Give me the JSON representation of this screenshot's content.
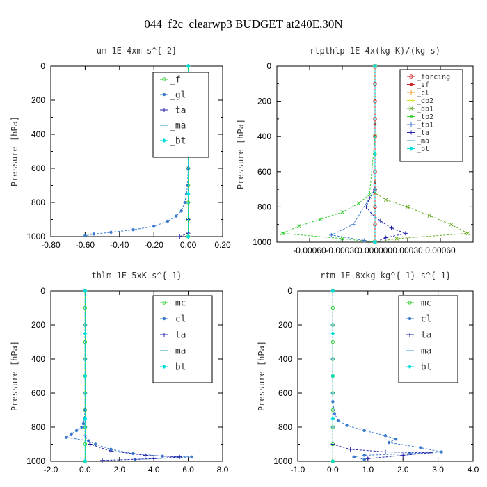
{
  "figure_title": "044_f2c_clearwp3  BUDGET at240E,30N",
  "chart_data": [
    {
      "type": "line",
      "title": "um  1E-4xm s^{-2}",
      "ylabel": "Pressure [hPa]",
      "xlim": [
        -0.8,
        0.2
      ],
      "ylim": [
        1000,
        0
      ],
      "xticks": [
        -0.8,
        -0.6,
        -0.4,
        -0.2,
        0.0,
        0.2
      ],
      "xtick_labels": [
        "-0.80",
        "-0.60",
        "-0.40",
        "-0.20",
        "0.00",
        "0.20"
      ],
      "yticks": [
        0,
        200,
        400,
        600,
        800,
        1000
      ],
      "ytick_labels": [
        "0",
        "200",
        "400",
        "600",
        "800",
        "1000"
      ],
      "legend_position": "top-right",
      "legend_font": 13,
      "series": [
        {
          "name": "_f",
          "color": "#33cc33",
          "marker": "o",
          "x": [
            0,
            0,
            0,
            0,
            0,
            0,
            0,
            0,
            0,
            0,
            0
          ],
          "y": [
            0,
            100,
            200,
            300,
            400,
            500,
            600,
            700,
            800,
            900,
            1000
          ]
        },
        {
          "name": "_gl",
          "color": "#3a7acc",
          "marker": "*",
          "x": [
            0,
            0,
            0,
            0,
            -0.005,
            -0.01,
            -0.02,
            -0.04,
            -0.07,
            -0.12,
            -0.2,
            -0.32,
            -0.45,
            -0.55,
            -0.6
          ],
          "y": [
            0,
            200,
            400,
            600,
            700,
            750,
            800,
            850,
            880,
            910,
            940,
            960,
            975,
            985,
            995
          ]
        },
        {
          "name": "_ta",
          "color": "#2222aa",
          "marker": "+",
          "x": [
            0,
            0,
            0,
            0,
            0,
            -0.05
          ],
          "y": [
            0,
            300,
            600,
            900,
            980,
            1000
          ]
        },
        {
          "name": "_ma",
          "color": "#3399cc",
          "marker": "-",
          "x": [
            0,
            0,
            0,
            0,
            0,
            0
          ],
          "y": [
            0,
            200,
            400,
            600,
            800,
            1000
          ]
        },
        {
          "name": "_bt",
          "color": "#00dddd",
          "marker": "d",
          "x": [
            0,
            0,
            0,
            0,
            0
          ],
          "y": [
            0,
            250,
            500,
            750,
            1000
          ]
        }
      ]
    },
    {
      "type": "line",
      "title": "rtpthlp  1E-4x(kg K)/(kg s)",
      "ylabel": "Pressure [hPa]",
      "xlim": [
        -0.0009,
        0.0009
      ],
      "ylim": [
        1000,
        0
      ],
      "xticks": [
        -0.0006,
        -0.0003,
        0.0,
        0.0003,
        0.0006
      ],
      "xtick_labels": [
        "-0.00060",
        "-0.00030",
        "0.000000",
        "0.00030",
        "0.00060"
      ],
      "yticks": [
        0,
        200,
        400,
        600,
        800,
        1000
      ],
      "ytick_labels": [
        "0",
        "200",
        "400",
        "600",
        "800",
        "1000"
      ],
      "legend_position": "top-right",
      "legend_font": 10,
      "series": [
        {
          "name": "_forcing",
          "color": "#cc2222",
          "marker": "o",
          "x": [
            0,
            0,
            0,
            0,
            0,
            0,
            0,
            0,
            0,
            0,
            0
          ],
          "y": [
            0,
            100,
            200,
            300,
            400,
            500,
            600,
            700,
            800,
            900,
            1000
          ]
        },
        {
          "name": "_sf",
          "color": "#cc2222",
          "marker": "*",
          "x": [
            0,
            0,
            0,
            0
          ],
          "y": [
            0,
            330,
            660,
            1000
          ]
        },
        {
          "name": "_cl",
          "color": "#ee9922",
          "marker": "+",
          "x": [
            0,
            0,
            0
          ],
          "y": [
            0,
            500,
            1000
          ]
        },
        {
          "name": "_dp2",
          "color": "#dddd22",
          "marker": "o",
          "x": [
            0,
            0,
            0
          ],
          "y": [
            0,
            500,
            1000
          ]
        },
        {
          "name": "_dp1",
          "color": "#66aa22",
          "marker": "x",
          "x": [
            0,
            0,
            0,
            0.0001,
            0.0003,
            0.0005,
            0.0007,
            0.00085,
            0.0002,
            0
          ],
          "y": [
            0,
            400,
            720,
            760,
            800,
            850,
            900,
            950,
            980,
            1000
          ]
        },
        {
          "name": "_tp2",
          "color": "#33cc33",
          "marker": "x",
          "x": [
            0,
            0,
            -5e-05,
            -0.00015,
            -0.0003,
            -0.0005,
            -0.0007,
            -0.00085,
            -0.0003,
            0
          ],
          "y": [
            0,
            400,
            730,
            780,
            830,
            870,
            910,
            950,
            980,
            1000
          ]
        },
        {
          "name": "_tp1",
          "color": "#3a7acc",
          "marker": "+",
          "x": [
            0,
            0,
            -0.0002,
            -0.0004,
            -0.0001,
            0
          ],
          "y": [
            0,
            700,
            900,
            960,
            990,
            1000
          ]
        },
        {
          "name": "_ta",
          "color": "#2222aa",
          "marker": "+",
          "x": [
            0,
            0,
            -5e-05,
            -8e-05,
            -3e-05,
            5e-05,
            0.00015,
            0.00028,
            0.0001,
            0
          ],
          "y": [
            0,
            700,
            750,
            800,
            840,
            880,
            920,
            950,
            975,
            1000
          ]
        },
        {
          "name": "_ma",
          "color": "#3399cc",
          "marker": "-",
          "x": [
            0,
            0,
            0
          ],
          "y": [
            0,
            500,
            1000
          ]
        },
        {
          "name": "_bt",
          "color": "#00dddd",
          "marker": "d",
          "x": [
            0,
            0,
            0
          ],
          "y": [
            0,
            500,
            1000
          ]
        }
      ]
    },
    {
      "type": "line",
      "title": "thlm  1E-5xK s^{-1}",
      "ylabel": "Pressure [hPa]",
      "xlim": [
        -2.0,
        8.0
      ],
      "ylim": [
        1000,
        0
      ],
      "xticks": [
        -2,
        0,
        2,
        4,
        6,
        8
      ],
      "xtick_labels": [
        "-2.0",
        "0.0",
        "2.0",
        "4.0",
        "6.0",
        "8.0"
      ],
      "yticks": [
        0,
        200,
        400,
        600,
        800,
        1000
      ],
      "ytick_labels": [
        "0",
        "200",
        "400",
        "600",
        "800",
        "1000"
      ],
      "legend_position": "top-right",
      "legend_font": 13,
      "series": [
        {
          "name": "_mc",
          "color": "#33cc33",
          "marker": "o",
          "x": [
            0,
            0,
            0,
            0,
            0,
            0,
            0,
            0,
            0,
            0,
            0
          ],
          "y": [
            0,
            100,
            200,
            300,
            400,
            500,
            600,
            700,
            800,
            900,
            1000
          ]
        },
        {
          "name": "_cl",
          "color": "#3a7acc",
          "marker": "*",
          "x": [
            0,
            0,
            -0.05,
            -0.1,
            -0.2,
            -0.5,
            -0.8,
            -1.1,
            0.2,
            0.6,
            1.5,
            2.8,
            4.5,
            6.2,
            2.9
          ],
          "y": [
            0,
            700,
            750,
            780,
            800,
            820,
            840,
            860,
            880,
            900,
            930,
            955,
            970,
            975,
            990
          ]
        },
        {
          "name": "_ta",
          "color": "#2222aa",
          "marker": "+",
          "x": [
            0,
            0,
            0.3,
            1.5,
            3.5,
            5.5,
            4.0,
            1.0
          ],
          "y": [
            0,
            850,
            900,
            940,
            965,
            975,
            985,
            995
          ]
        },
        {
          "name": "_ma",
          "color": "#3399cc",
          "marker": "-",
          "x": [
            0,
            0,
            0,
            0,
            0,
            0
          ],
          "y": [
            0,
            200,
            400,
            600,
            800,
            1000
          ]
        },
        {
          "name": "_bt",
          "color": "#00dddd",
          "marker": "d",
          "x": [
            0,
            0,
            0,
            0,
            0
          ],
          "y": [
            0,
            250,
            500,
            750,
            1000
          ]
        }
      ]
    },
    {
      "type": "line",
      "title": "rtm  1E-8xkg kg^{-1} s^{-1}",
      "ylabel": "Pressure [hPa]",
      "xlim": [
        -1.0,
        4.0
      ],
      "ylim": [
        1000,
        0
      ],
      "xticks": [
        -1,
        0,
        1,
        2,
        3,
        4
      ],
      "xtick_labels": [
        "-1.0",
        "0.0",
        "1.0",
        "2.0",
        "3.0",
        "4.0"
      ],
      "yticks": [
        0,
        200,
        400,
        600,
        800,
        1000
      ],
      "ytick_labels": [
        "0",
        "200",
        "400",
        "600",
        "800",
        "1000"
      ],
      "legend_position": "top-right",
      "legend_font": 13,
      "series": [
        {
          "name": "_mc",
          "color": "#33cc33",
          "marker": "o",
          "x": [
            0,
            0,
            0,
            0,
            0,
            0,
            0,
            0,
            0,
            0,
            0
          ],
          "y": [
            0,
            100,
            200,
            300,
            400,
            500,
            600,
            700,
            800,
            900,
            1000
          ]
        },
        {
          "name": "_cl",
          "color": "#3a7acc",
          "marker": "*",
          "x": [
            0,
            0,
            0.05,
            0.15,
            0.4,
            0.9,
            1.5,
            1.8,
            1.6,
            2.5,
            3.1,
            2.2,
            0.9,
            0.6,
            0.9
          ],
          "y": [
            0,
            650,
            720,
            760,
            790,
            820,
            850,
            870,
            890,
            920,
            945,
            955,
            965,
            975,
            990
          ]
        },
        {
          "name": "_ta",
          "color": "#2222aa",
          "marker": "+",
          "x": [
            0,
            0,
            0.5,
            1.5,
            2.8,
            2.0,
            1.0
          ],
          "y": [
            0,
            900,
            930,
            945,
            950,
            965,
            985
          ]
        },
        {
          "name": "_ma",
          "color": "#3399cc",
          "marker": "-",
          "x": [
            0,
            0,
            0,
            0,
            0,
            0
          ],
          "y": [
            0,
            200,
            400,
            600,
            800,
            1000
          ]
        },
        {
          "name": "_bt",
          "color": "#00dddd",
          "marker": "d",
          "x": [
            0,
            0,
            0,
            0,
            0
          ],
          "y": [
            0,
            250,
            500,
            750,
            1000
          ]
        }
      ]
    }
  ]
}
